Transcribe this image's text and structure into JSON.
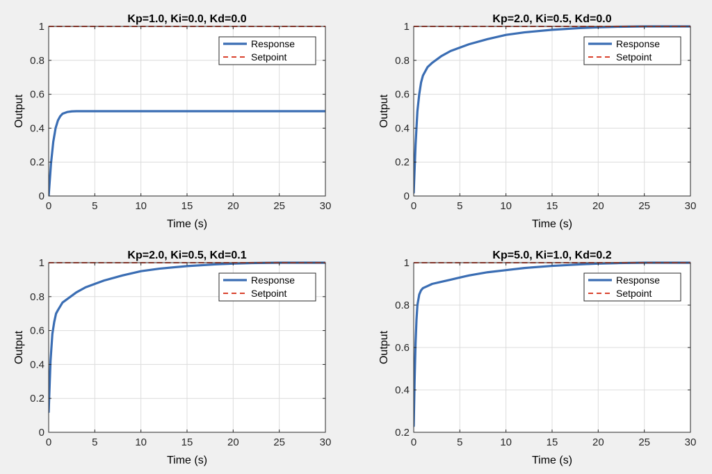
{
  "figure": {
    "background": "#f0f0f0"
  },
  "colors": {
    "response": "#3a6db3",
    "setpoint": "#d9412c",
    "grid": "#dcdcdc",
    "axis": "#262626",
    "plot_bg": "#ffffff"
  },
  "chart_data": [
    {
      "type": "line",
      "title": "Kp=1.0, Ki=0.0, Kd=0.0",
      "xlabel": "Time (s)",
      "ylabel": "Output",
      "xlim": [
        0,
        30
      ],
      "ylim": [
        0,
        1
      ],
      "xticks": [
        0,
        5,
        10,
        15,
        20,
        25,
        30
      ],
      "yticks": [
        0,
        0.2,
        0.4,
        0.6,
        0.8,
        1
      ],
      "ytick_labels": [
        "0",
        "0.2",
        "0.4",
        "0.6",
        "0.8",
        "1"
      ],
      "grid": true,
      "legend_position": "top-right",
      "series": [
        {
          "name": "Response",
          "style": "solid",
          "x": [
            0,
            0.25,
            0.5,
            0.75,
            1,
            1.25,
            1.5,
            2,
            2.5,
            3,
            4,
            5,
            10,
            15,
            20,
            25,
            30
          ],
          "y": [
            0,
            0.19,
            0.32,
            0.4,
            0.445,
            0.47,
            0.485,
            0.495,
            0.499,
            0.5,
            0.5,
            0.5,
            0.5,
            0.5,
            0.5,
            0.5,
            0.5
          ]
        },
        {
          "name": "Setpoint",
          "style": "dashed",
          "x": [
            0,
            30
          ],
          "y": [
            1,
            1
          ]
        }
      ]
    },
    {
      "type": "line",
      "title": "Kp=2.0, Ki=0.5, Kd=0.0",
      "xlabel": "Time (s)",
      "ylabel": "Output",
      "xlim": [
        0,
        30
      ],
      "ylim": [
        0,
        1
      ],
      "xticks": [
        0,
        5,
        10,
        15,
        20,
        25,
        30
      ],
      "yticks": [
        0,
        0.2,
        0.4,
        0.6,
        0.8,
        1
      ],
      "ytick_labels": [
        "0",
        "0.2",
        "0.4",
        "0.6",
        "0.8",
        "1"
      ],
      "grid": true,
      "legend_position": "top-right",
      "series": [
        {
          "name": "Response",
          "style": "solid",
          "x": [
            0,
            0.2,
            0.4,
            0.6,
            0.8,
            1,
            1.5,
            2,
            3,
            4,
            5,
            6,
            8,
            10,
            12,
            15,
            18,
            20,
            22,
            25,
            30
          ],
          "y": [
            0.02,
            0.3,
            0.5,
            0.6,
            0.67,
            0.71,
            0.76,
            0.785,
            0.825,
            0.855,
            0.875,
            0.895,
            0.925,
            0.95,
            0.965,
            0.98,
            0.99,
            0.995,
            0.998,
            1.0,
            1.0
          ]
        },
        {
          "name": "Setpoint",
          "style": "dashed",
          "x": [
            0,
            30
          ],
          "y": [
            1,
            1
          ]
        }
      ]
    },
    {
      "type": "line",
      "title": "Kp=2.0, Ki=0.5, Kd=0.1",
      "xlabel": "Time (s)",
      "ylabel": "Output",
      "xlim": [
        0,
        30
      ],
      "ylim": [
        0,
        1
      ],
      "xticks": [
        0,
        5,
        10,
        15,
        20,
        25,
        30
      ],
      "yticks": [
        0,
        0.2,
        0.4,
        0.6,
        0.8,
        1
      ],
      "ytick_labels": [
        "0",
        "0.2",
        "0.4",
        "0.6",
        "0.8",
        "1"
      ],
      "grid": true,
      "legend_position": "top-right",
      "series": [
        {
          "name": "Response",
          "style": "solid",
          "x": [
            0,
            0.2,
            0.4,
            0.6,
            0.8,
            1,
            1.5,
            2,
            3,
            4,
            5,
            6,
            8,
            10,
            12,
            15,
            18,
            20,
            22,
            25,
            30
          ],
          "y": [
            0.12,
            0.42,
            0.58,
            0.65,
            0.7,
            0.72,
            0.765,
            0.785,
            0.825,
            0.855,
            0.875,
            0.895,
            0.925,
            0.95,
            0.965,
            0.98,
            0.99,
            0.995,
            0.998,
            1.0,
            1.0
          ]
        },
        {
          "name": "Setpoint",
          "style": "dashed",
          "x": [
            0,
            30
          ],
          "y": [
            1,
            1
          ]
        }
      ]
    },
    {
      "type": "line",
      "title": "Kp=5.0, Ki=1.0, Kd=0.2",
      "xlabel": "Time (s)",
      "ylabel": "Output",
      "xlim": [
        0,
        30
      ],
      "ylim": [
        0.2,
        1
      ],
      "xticks": [
        0,
        5,
        10,
        15,
        20,
        25,
        30
      ],
      "yticks": [
        0.2,
        0.4,
        0.6,
        0.8,
        1
      ],
      "ytick_labels": [
        "0.2",
        "0.4",
        "0.6",
        "0.8",
        "1"
      ],
      "grid": true,
      "legend_position": "top-right",
      "series": [
        {
          "name": "Response",
          "style": "solid",
          "x": [
            0,
            0.1,
            0.2,
            0.3,
            0.4,
            0.6,
            0.8,
            1,
            1.5,
            2,
            3,
            4,
            5,
            6,
            8,
            10,
            12,
            15,
            18,
            20,
            22,
            25,
            30
          ],
          "y": [
            0.23,
            0.45,
            0.62,
            0.73,
            0.8,
            0.85,
            0.87,
            0.88,
            0.89,
            0.9,
            0.91,
            0.92,
            0.93,
            0.94,
            0.955,
            0.965,
            0.975,
            0.985,
            0.992,
            0.996,
            0.998,
            1.0,
            1.0
          ]
        },
        {
          "name": "Setpoint",
          "style": "dashed",
          "x": [
            0,
            30
          ],
          "y": [
            1,
            1
          ]
        }
      ]
    }
  ]
}
